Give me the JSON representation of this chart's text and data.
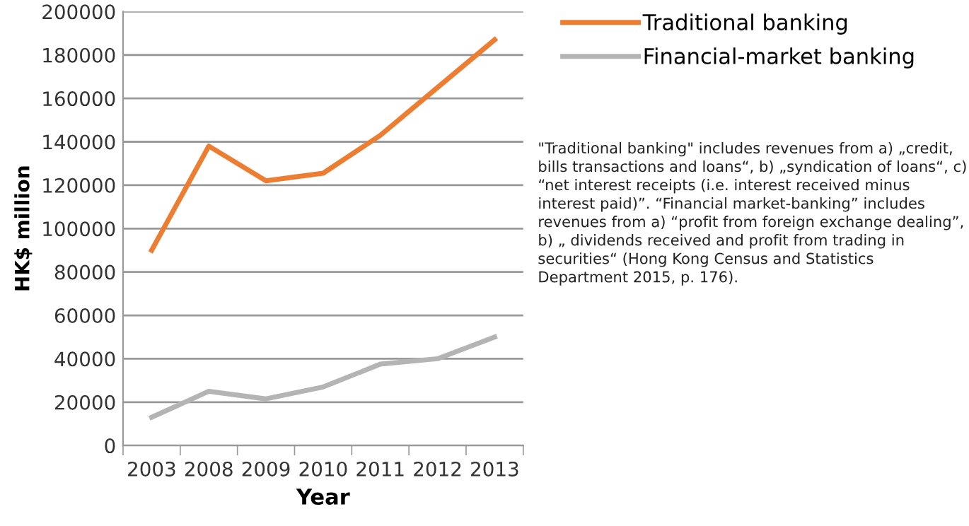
{
  "chart_data": {
    "type": "line",
    "xlabel": "Year",
    "ylabel": "HK$ million",
    "categories": [
      "2003",
      "2008",
      "2009",
      "2010",
      "2011",
      "2012",
      "2013"
    ],
    "series": [
      {
        "name": "Traditional banking",
        "color": "#ed7d31",
        "values": [
          90000,
          138000,
          122000,
          125500,
          143000,
          165000,
          187000
        ]
      },
      {
        "name": "Financial-market banking",
        "color": "#b4b4b4",
        "values": [
          13000,
          25000,
          21500,
          27000,
          37500,
          40000,
          50000
        ]
      }
    ],
    "ylim": [
      0,
      200000
    ],
    "yticks": [
      0,
      20000,
      40000,
      60000,
      80000,
      100000,
      120000,
      140000,
      160000,
      180000,
      200000
    ],
    "grid": "y",
    "legend": "right",
    "marker": "none",
    "line_style": "solid",
    "annotations": [
      "\"Traditional banking\" includes revenues from a) „credit, bills transactions and loans“, b) „syndication of loans“, c) “net interest receipts (i.e. interest received minus interest paid)”. “Financial market-banking” includes revenues from a) “profit from foreign exchange dealing”, b) „ dividends received and profit from trading in securities“ (Hong Kong Census and Statistics Department 2015, p. 176)."
    ]
  }
}
